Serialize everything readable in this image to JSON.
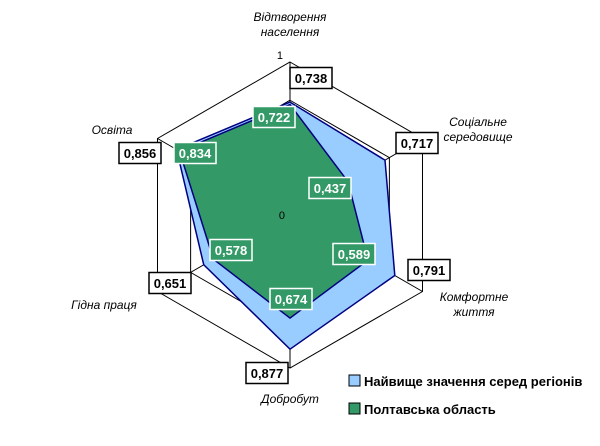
{
  "chart_data": {
    "type": "radar",
    "categories": [
      [
        "Відтворення",
        "населення"
      ],
      [
        "Соціальне",
        "середовище"
      ],
      [
        "Комфортне",
        "життя"
      ],
      [
        "Добробут"
      ],
      [
        "Гідна праця"
      ],
      [
        "Освіта"
      ]
    ],
    "range": [
      0,
      1
    ],
    "tick_labels": {
      "min": "0",
      "max": "1"
    },
    "grid": true,
    "legend_position": "bottom-right",
    "series": [
      {
        "name": "Найвище значення серед регіонів",
        "values": [
          0.738,
          0.717,
          0.791,
          0.877,
          0.651,
          0.856
        ],
        "labels": [
          "0,738",
          "0,717",
          "0,791",
          "0,877",
          "0,651",
          "0,856"
        ],
        "color": "#99ccff"
      },
      {
        "name": "Полтавська область",
        "values": [
          0.722,
          0.437,
          0.589,
          0.674,
          0.578,
          0.834
        ],
        "labels": [
          "0,722",
          "0,437",
          "0,589",
          "0,674",
          "0,578",
          "0,834"
        ],
        "color": "#339966"
      }
    ]
  }
}
